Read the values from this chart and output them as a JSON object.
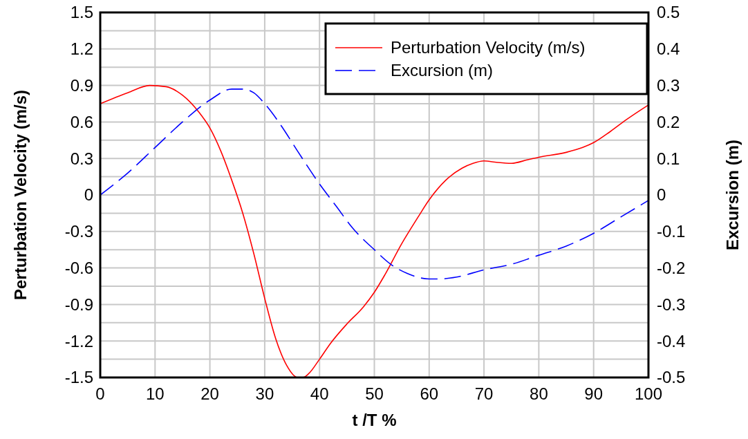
{
  "chart_data": {
    "type": "line",
    "xlabel": "t /T %",
    "ylabel": "Perturbation Velocity (m/s)",
    "y2label": "Excursion (m)",
    "xlim": [
      0,
      100
    ],
    "xticks": [
      0,
      10,
      20,
      30,
      40,
      50,
      60,
      70,
      80,
      90,
      100
    ],
    "ylim": [
      -1.5,
      1.5
    ],
    "yticks": [
      -1.5,
      {
        "value": -1.35,
        "label": null
      },
      -1.2,
      {
        "value": -1.05,
        "label": null
      },
      -0.9,
      {
        "value": -0.75,
        "label": null
      },
      -0.6,
      {
        "value": -0.45,
        "label": null
      },
      -0.3,
      {
        "value": -0.15,
        "label": null
      },
      0,
      {
        "value": 0.15,
        "label": null
      },
      0.3,
      {
        "value": 0.45,
        "label": null
      },
      0.6,
      {
        "value": 0.75,
        "label": null
      },
      0.9,
      {
        "value": 1.05,
        "label": null
      },
      1.2,
      {
        "value": 1.35,
        "label": null
      },
      1.5
    ],
    "y2lim": [
      -0.5,
      0.5
    ],
    "y2ticks": [
      -0.5,
      -0.4,
      -0.3,
      -0.2,
      -0.1,
      0,
      0.1,
      0.2,
      0.3,
      0.4,
      0.5
    ],
    "grid": true,
    "legend": "top right",
    "marker": "none",
    "series": [
      {
        "name": "Perturbation Velocity (m/s)",
        "color": "#ff0000",
        "line_style": "solid",
        "x": [
          0,
          5,
          9,
          12,
          15,
          18,
          20,
          22,
          24,
          26,
          28,
          30,
          32,
          34,
          36,
          37,
          38,
          40,
          42,
          45,
          48,
          50,
          52,
          55,
          58,
          60,
          63,
          66,
          68,
          70,
          72,
          75,
          78,
          80,
          85,
          88,
          90,
          93,
          96,
          100
        ],
        "values": [
          0.75,
          0.84,
          0.9,
          0.89,
          0.82,
          0.68,
          0.55,
          0.36,
          0.12,
          -0.15,
          -0.48,
          -0.85,
          -1.18,
          -1.4,
          -1.5,
          -1.5,
          -1.47,
          -1.35,
          -1.22,
          -1.06,
          -0.92,
          -0.8,
          -0.65,
          -0.4,
          -0.18,
          -0.04,
          0.12,
          0.22,
          0.26,
          0.28,
          0.27,
          0.26,
          0.29,
          0.31,
          0.35,
          0.39,
          0.43,
          0.52,
          0.62,
          0.74
        ]
      },
      {
        "name": "Excursion (m)",
        "color": "#0000ff",
        "line_style": "dashed",
        "axis": "y2",
        "x": [
          0,
          5,
          10,
          15,
          20,
          24,
          26,
          28,
          30,
          33,
          36,
          40,
          43,
          46,
          50,
          53,
          56,
          60,
          62,
          65,
          70,
          75,
          80,
          85,
          90,
          95,
          100
        ],
        "values": [
          0,
          0.06,
          0.13,
          0.2,
          0.26,
          0.29,
          0.29,
          0.28,
          0.25,
          0.19,
          0.12,
          0.03,
          -0.03,
          -0.09,
          -0.15,
          -0.19,
          -0.215,
          -0.23,
          -0.23,
          -0.225,
          -0.205,
          -0.19,
          -0.165,
          -0.14,
          -0.105,
          -0.06,
          -0.015
        ]
      }
    ]
  }
}
